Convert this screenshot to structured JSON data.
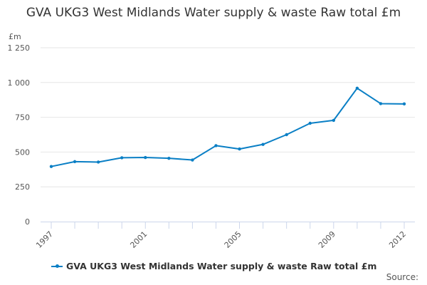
{
  "chart_data": {
    "type": "line",
    "title": "GVA UKG3 West Midlands Water supply & waste Raw total £m",
    "ylabel": "£m",
    "xlabel": "",
    "categories": [
      "1997",
      "1998",
      "1999",
      "2000",
      "2001",
      "2002",
      "2003",
      "2004",
      "2005",
      "2006",
      "2007",
      "2008",
      "2009",
      "2010",
      "2011",
      "2012"
    ],
    "x_tick_labels_shown": [
      "1997",
      "2001",
      "2005",
      "2009",
      "2012"
    ],
    "series": [
      {
        "name": "GVA UKG3 West Midlands Water supply & waste Raw total £m",
        "values": [
          396,
          431,
          428,
          459,
          461,
          455,
          443,
          546,
          522,
          555,
          625,
          707,
          728,
          959,
          848,
          846
        ],
        "color": "#0a7fc5"
      }
    ],
    "ylim": [
      0,
      1250
    ],
    "yticks": [
      0,
      250,
      500,
      750,
      1000,
      1250
    ],
    "ytick_labels": [
      "0",
      "250",
      "500",
      "750",
      "1 000",
      "1 250"
    ],
    "grid": true,
    "legend": "bottom"
  },
  "source_label": "Source:"
}
